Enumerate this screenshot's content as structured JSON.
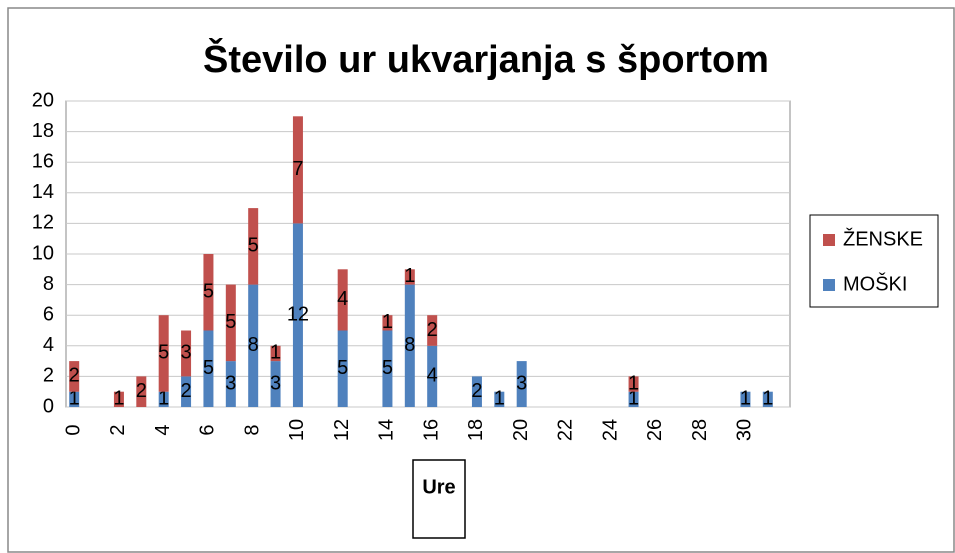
{
  "chart_data": {
    "type": "stacked_bar",
    "title": "Število ur ukvarjanja s športom",
    "x_label": "Ure",
    "categories": [
      "0",
      null,
      "2",
      null,
      "4",
      null,
      "6",
      null,
      "8",
      null,
      "10",
      null,
      "12",
      null,
      "14",
      null,
      "16",
      null,
      "18",
      null,
      "20",
      null,
      "22",
      null,
      "24",
      null,
      "26",
      null,
      "28",
      null,
      "30",
      null
    ],
    "series": [
      {
        "name": "MOŠKI",
        "color": "#4f81bd",
        "values": [
          1,
          null,
          null,
          null,
          1,
          2,
          5,
          3,
          8,
          3,
          12,
          null,
          5,
          null,
          5,
          8,
          4,
          null,
          2,
          1,
          3,
          null,
          null,
          null,
          null,
          1,
          null,
          null,
          null,
          null,
          1,
          1
        ]
      },
      {
        "name": "ŽENSKE",
        "color": "#c0504d",
        "values": [
          2,
          null,
          1,
          2,
          5,
          3,
          5,
          5,
          5,
          1,
          7,
          null,
          4,
          null,
          1,
          1,
          2,
          null,
          null,
          null,
          null,
          null,
          null,
          null,
          null,
          1,
          null,
          null,
          null,
          null,
          null,
          null
        ]
      }
    ],
    "ylim": [
      0,
      20
    ],
    "yticks": [
      0,
      2,
      4,
      6,
      8,
      10,
      12,
      14,
      16,
      18,
      20
    ],
    "grid": true,
    "legend": "right"
  }
}
